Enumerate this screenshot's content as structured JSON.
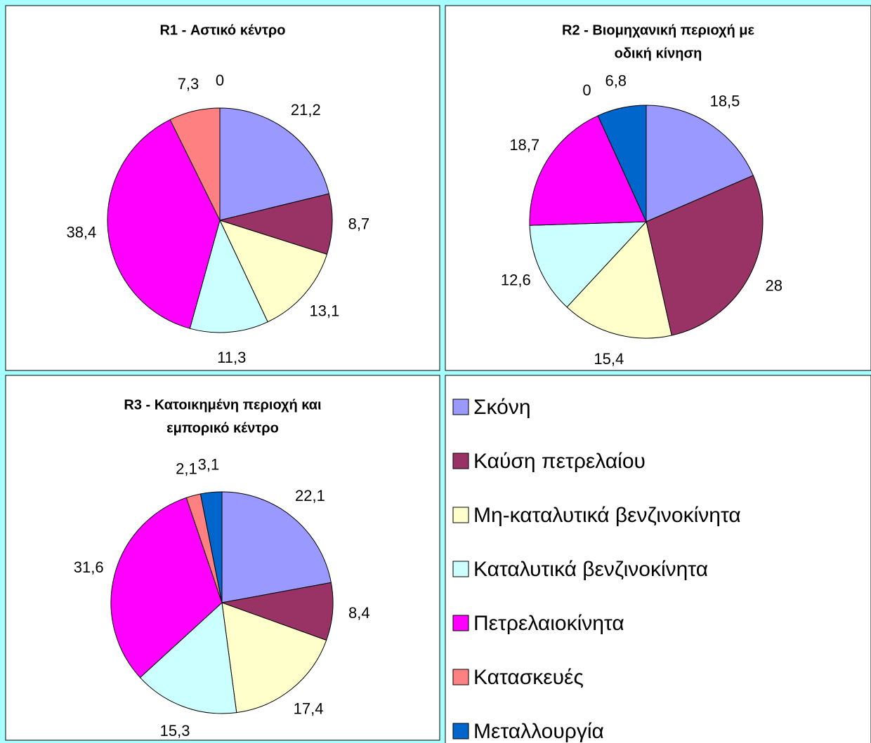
{
  "chart_data": [
    {
      "type": "pie",
      "title": [
        "R1 - Αστικό κέντρο"
      ],
      "values": [
        21.2,
        8.7,
        13.1,
        11.3,
        38.4,
        7.3,
        0
      ],
      "value_labels": [
        "21,2",
        "8,7",
        "13,1",
        "11,3",
        "38,4",
        "7,3",
        "0"
      ]
    },
    {
      "type": "pie",
      "title": [
        "R2 - Βιομηχανική περιοχή με",
        "οδική κίνηση"
      ],
      "values": [
        18.5,
        28,
        15.4,
        12.6,
        18.7,
        0,
        6.8
      ],
      "value_labels": [
        "18,5",
        "28",
        "15,4",
        "12,6",
        "18,7",
        "0",
        "6,8"
      ]
    },
    {
      "type": "pie",
      "title": [
        "R3 - Κατοικημένη περιοχή και",
        "εμπορικό κέντρο"
      ],
      "values": [
        22.1,
        8.4,
        17.4,
        15.3,
        31.6,
        2.1,
        3.1
      ],
      "value_labels": [
        "22,1",
        "8,4",
        "17,4",
        "15,3",
        "31,6",
        "2,1",
        "3,1"
      ]
    }
  ],
  "legend": {
    "labels": [
      "Σκόνη",
      "Καύση πετρελαίου",
      "Μη-καταλυτικά βενζινοκίνητα",
      "Καταλυτικά βενζινοκίνητα",
      "Πετρελαιοκίνητα",
      "Κατασκευές",
      "Μεταλλουργία"
    ],
    "colors": [
      "#9999ff",
      "#993366",
      "#ffffcc",
      "#ccffff",
      "#ff00ff",
      "#ff8080",
      "#0066cc"
    ]
  }
}
